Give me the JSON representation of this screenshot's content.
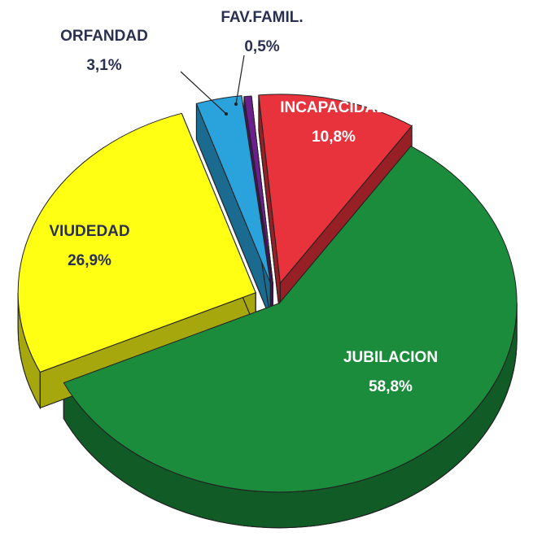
{
  "chart_data": {
    "type": "pie",
    "categories": [
      "FAV.FAMIL.",
      "INCAPACIDAD",
      "JUBILACION",
      "VIUDEDAD",
      "ORFANDAD"
    ],
    "values": [
      0.5,
      10.8,
      58.8,
      26.9,
      3.1
    ],
    "value_labels": [
      "0,5%",
      "10,8%",
      "58,8%",
      "26,9%",
      "3,1%"
    ],
    "colors": [
      "#6b1f8c",
      "#e8323c",
      "#1b8c3c",
      "#ffff14",
      "#2aa3dc"
    ]
  }
}
